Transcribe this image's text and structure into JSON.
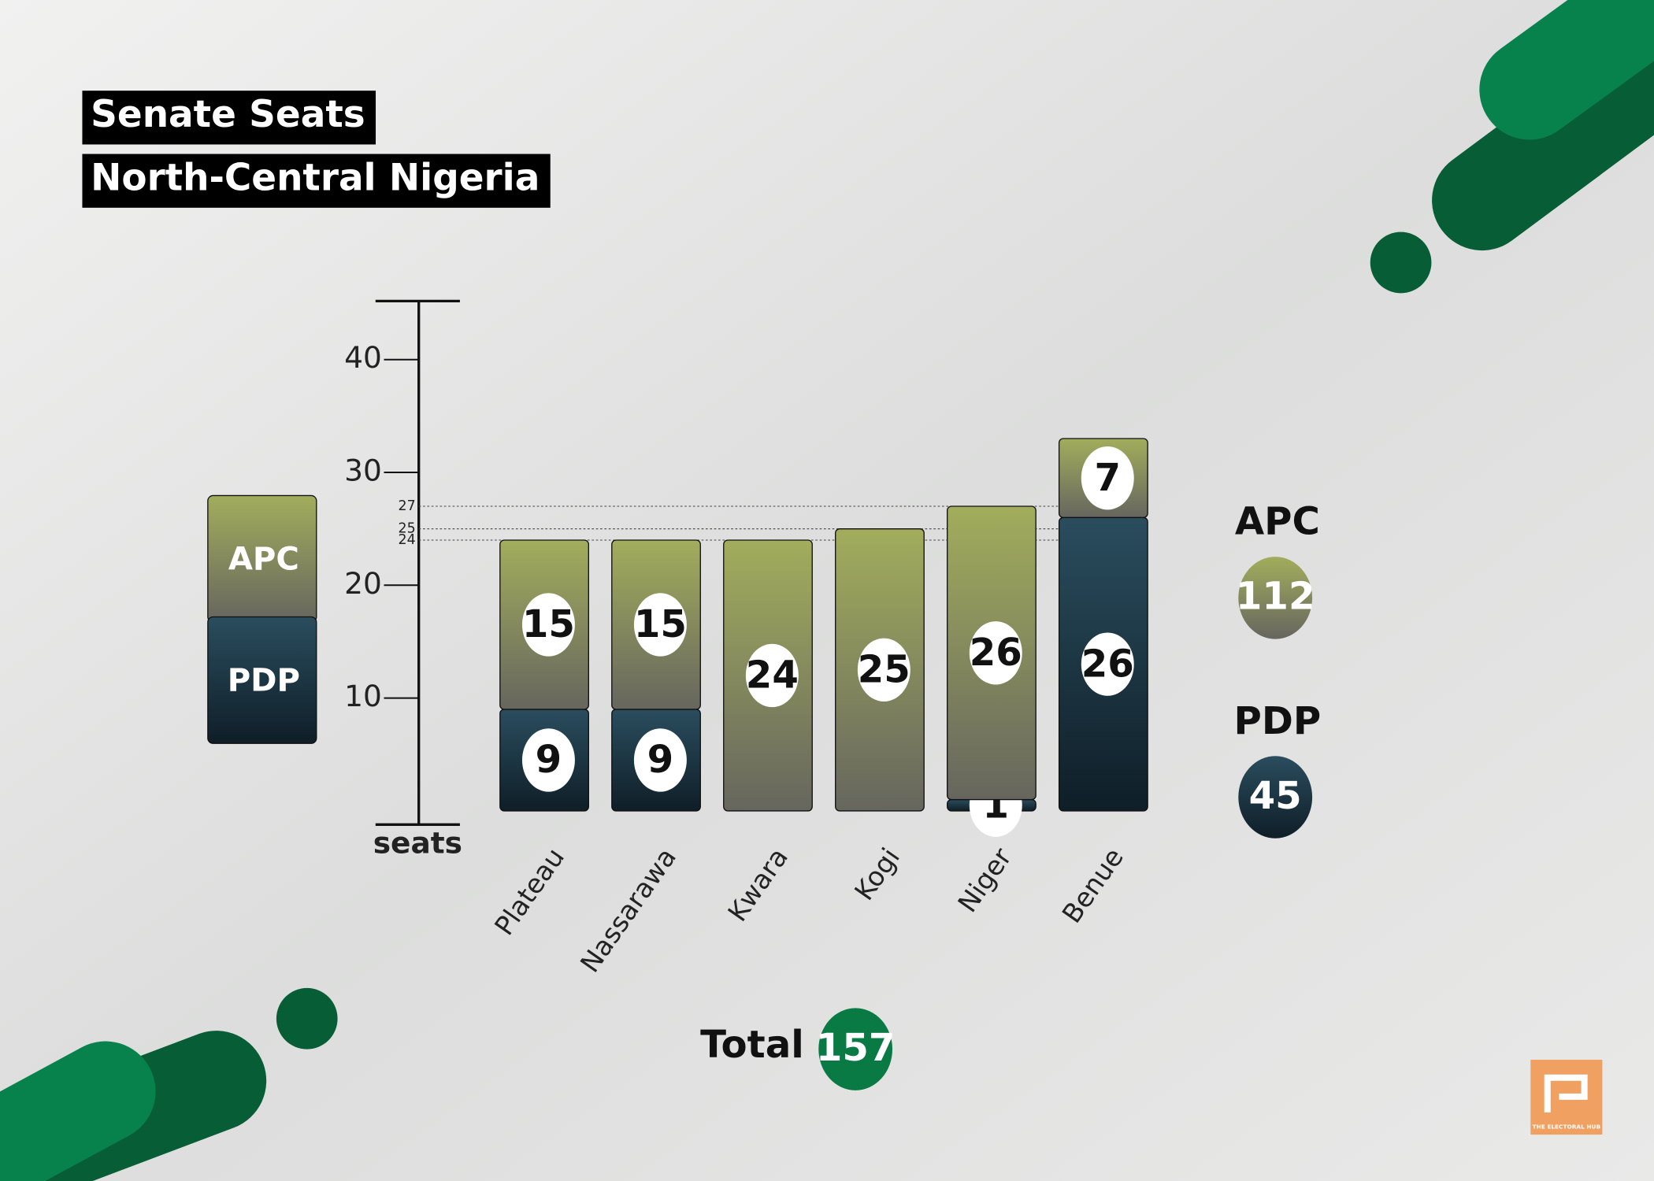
{
  "title": "Senate Seats",
  "subtitle": "North-Central Nigeria",
  "logo_text": "THE ELECTORAL HUB",
  "chart_data": {
    "type": "stacked_bar",
    "y_label": "seats",
    "categories": [
      "Plateau",
      "Nassarawa",
      "Kwara",
      "Kogi",
      "Niger",
      "Benue"
    ],
    "series": [
      {
        "name": "PDP",
        "color": "#2a4d5e",
        "values": [
          9,
          9,
          null,
          null,
          1,
          26
        ]
      },
      {
        "name": "APC",
        "color": "#a2ad5c",
        "values": [
          15,
          15,
          24,
          25,
          26,
          7
        ]
      }
    ],
    "ylim": [
      0,
      45
    ],
    "yticks": [
      10,
      20,
      30,
      40
    ],
    "minor_ticks": [
      24,
      25,
      27
    ],
    "party_totals": [
      {
        "name": "APC",
        "value": 112
      },
      {
        "name": "PDP",
        "value": 45
      }
    ],
    "total_label": "Total",
    "total": 157
  }
}
